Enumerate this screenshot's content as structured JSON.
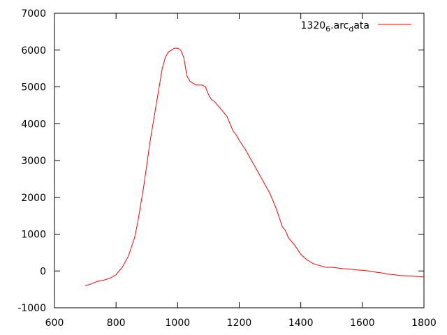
{
  "chart_data": {
    "type": "line",
    "title": "",
    "xlabel": "",
    "ylabel": "",
    "xlim": [
      600,
      1800
    ],
    "ylim": [
      -1000,
      7000
    ],
    "xticks": [
      600,
      800,
      1000,
      1200,
      1400,
      1600,
      1800
    ],
    "yticks": [
      -1000,
      0,
      1000,
      2000,
      3000,
      4000,
      5000,
      6000,
      7000
    ],
    "xtick_labels": [
      "600",
      "800",
      "1000",
      "1200",
      "1400",
      "1600",
      "1800"
    ],
    "ytick_labels": [
      "-1000",
      "0",
      "1000",
      "2000",
      "3000",
      "4000",
      "5000",
      "6000",
      "7000"
    ],
    "grid": false,
    "legend_position": "top-right",
    "series": [
      {
        "name": "1320_6.arc_data",
        "legend_parts": {
          "base1": "1320",
          "sub1": "6",
          "base2": ".arc",
          "sub2": "d",
          "base3": "ata"
        },
        "color": "#ff0000",
        "x": [
          700,
          720,
          740,
          760,
          780,
          800,
          820,
          840,
          860,
          870,
          880,
          890,
          900,
          910,
          920,
          930,
          940,
          950,
          960,
          970,
          980,
          990,
          1000,
          1010,
          1020,
          1030,
          1040,
          1050,
          1060,
          1070,
          1080,
          1090,
          1100,
          1110,
          1120,
          1130,
          1140,
          1150,
          1160,
          1170,
          1180,
          1190,
          1200,
          1220,
          1240,
          1260,
          1280,
          1300,
          1320,
          1340,
          1350,
          1360,
          1380,
          1400,
          1420,
          1440,
          1460,
          1480,
          1500,
          1520,
          1540,
          1560,
          1580,
          1600,
          1620,
          1640,
          1660,
          1680,
          1700,
          1720,
          1740,
          1760,
          1780,
          1800
        ],
        "y": [
          -400,
          -350,
          -280,
          -250,
          -200,
          -100,
          100,
          400,
          900,
          1300,
          1800,
          2300,
          2900,
          3500,
          4000,
          4500,
          5000,
          5500,
          5800,
          5950,
          6000,
          6050,
          6050,
          6000,
          5800,
          5300,
          5150,
          5100,
          5050,
          5050,
          5050,
          5000,
          4800,
          4650,
          4600,
          4500,
          4400,
          4300,
          4200,
          4000,
          3800,
          3700,
          3550,
          3300,
          3000,
          2700,
          2400,
          2100,
          1700,
          1200,
          1100,
          900,
          700,
          450,
          300,
          200,
          150,
          100,
          100,
          80,
          60,
          50,
          30,
          20,
          0,
          -30,
          -50,
          -80,
          -100,
          -120,
          -130,
          -140,
          -150,
          -160
        ]
      }
    ]
  }
}
